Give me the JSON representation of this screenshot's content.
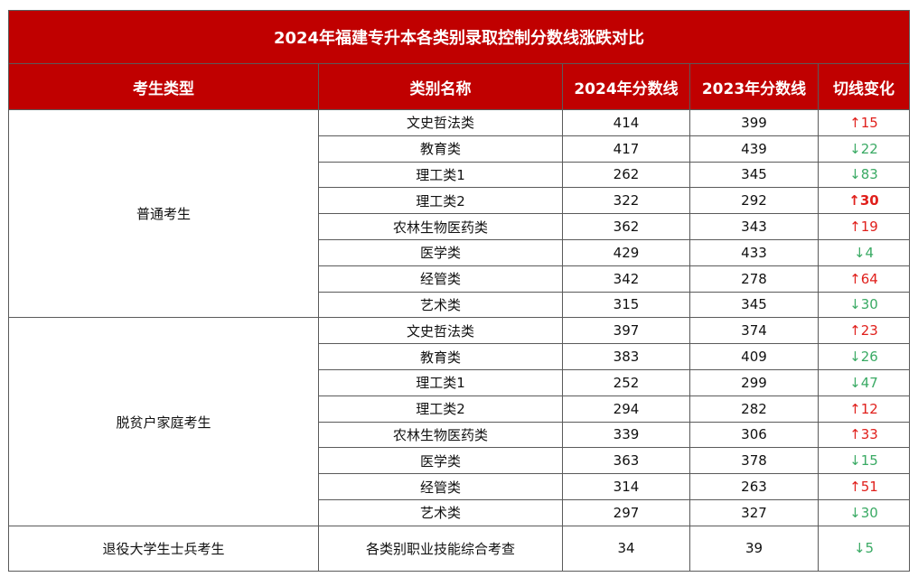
{
  "title": "2024年福建专升本各类别录取控制分数线涨跌对比",
  "headers": [
    "考生类型",
    "类别名称",
    "2024年分数线",
    "2023年分数线",
    "切线变化"
  ],
  "colors": {
    "header_bg": "#c00000",
    "up": "#e0201c",
    "down": "#3aaa64"
  },
  "groups": [
    {
      "type": "普通考生",
      "rows": [
        {
          "name": "文史哲法类",
          "y2024": "414",
          "y2023": "399",
          "dir": "↑",
          "delta": "15",
          "bold": false
        },
        {
          "name": "教育类",
          "y2024": "417",
          "y2023": "439",
          "dir": "↓",
          "delta": "22",
          "bold": false
        },
        {
          "name": "理工类1",
          "y2024": "262",
          "y2023": "345",
          "dir": "↓",
          "delta": "83",
          "bold": false
        },
        {
          "name": "理工类2",
          "y2024": "322",
          "y2023": "292",
          "dir": "↑",
          "delta": "30",
          "bold": true
        },
        {
          "name": "农林生物医药类",
          "y2024": "362",
          "y2023": "343",
          "dir": "↑",
          "delta": "19",
          "bold": false
        },
        {
          "name": "医学类",
          "y2024": "429",
          "y2023": "433",
          "dir": "↓",
          "delta": "4",
          "bold": false
        },
        {
          "name": "经管类",
          "y2024": "342",
          "y2023": "278",
          "dir": "↑",
          "delta": "64",
          "bold": false
        },
        {
          "name": "艺术类",
          "y2024": "315",
          "y2023": "345",
          "dir": "↓",
          "delta": "30",
          "bold": false
        }
      ]
    },
    {
      "type": "脱贫户家庭考生",
      "rows": [
        {
          "name": "文史哲法类",
          "y2024": "397",
          "y2023": "374",
          "dir": "↑",
          "delta": "23",
          "bold": false
        },
        {
          "name": "教育类",
          "y2024": "383",
          "y2023": "409",
          "dir": "↓",
          "delta": "26",
          "bold": false
        },
        {
          "name": "理工类1",
          "y2024": "252",
          "y2023": "299",
          "dir": "↓",
          "delta": "47",
          "bold": false
        },
        {
          "name": "理工类2",
          "y2024": "294",
          "y2023": "282",
          "dir": "↑",
          "delta": "12",
          "bold": false
        },
        {
          "name": "农林生物医药类",
          "y2024": "339",
          "y2023": "306",
          "dir": "↑",
          "delta": "33",
          "bold": false
        },
        {
          "name": "医学类",
          "y2024": "363",
          "y2023": "378",
          "dir": "↓",
          "delta": "15",
          "bold": false
        },
        {
          "name": "经管类",
          "y2024": "314",
          "y2023": "263",
          "dir": "↑",
          "delta": "51",
          "bold": false
        },
        {
          "name": "艺术类",
          "y2024": "297",
          "y2023": "327",
          "dir": "↓",
          "delta": "30",
          "bold": false
        }
      ]
    },
    {
      "type": "退役大学生士兵考生",
      "rows": [
        {
          "name": "各类别职业技能综合考查",
          "y2024": "34",
          "y2023": "39",
          "dir": "↓",
          "delta": "5",
          "bold": false
        }
      ]
    }
  ]
}
